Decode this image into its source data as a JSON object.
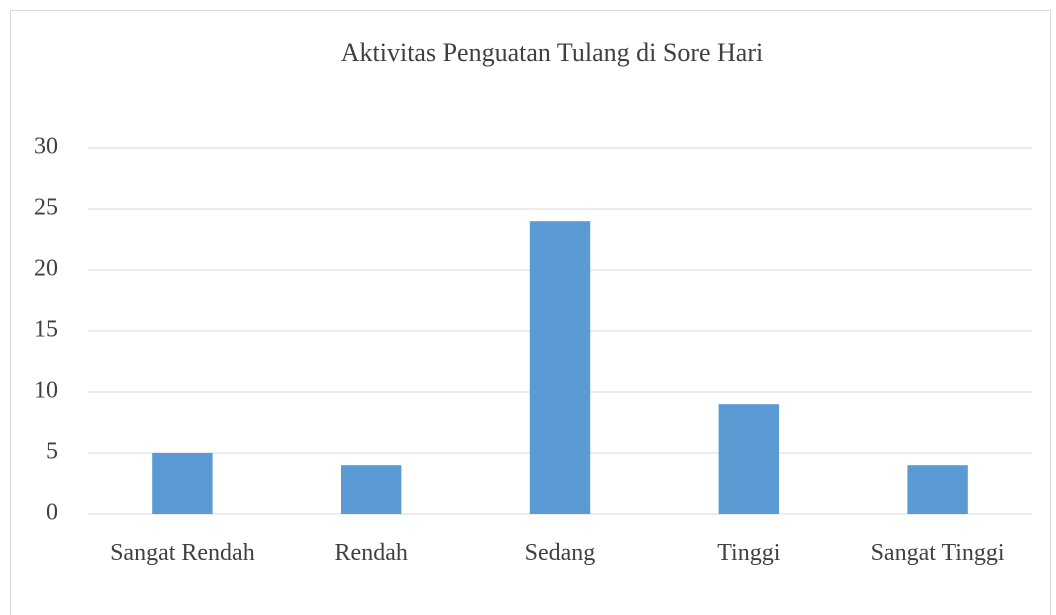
{
  "chart_data": {
    "type": "bar",
    "title": "Aktivitas Penguatan Tulang di Sore Hari",
    "categories": [
      "Sangat Rendah",
      "Rendah",
      "Sedang",
      "Tinggi",
      "Sangat Tinggi"
    ],
    "values": [
      5,
      4,
      24,
      9,
      4
    ],
    "color": "#5b9bd5",
    "ylim": [
      0,
      30
    ],
    "yticks": [
      0,
      5,
      10,
      15,
      20,
      25,
      30
    ],
    "grid": true
  }
}
